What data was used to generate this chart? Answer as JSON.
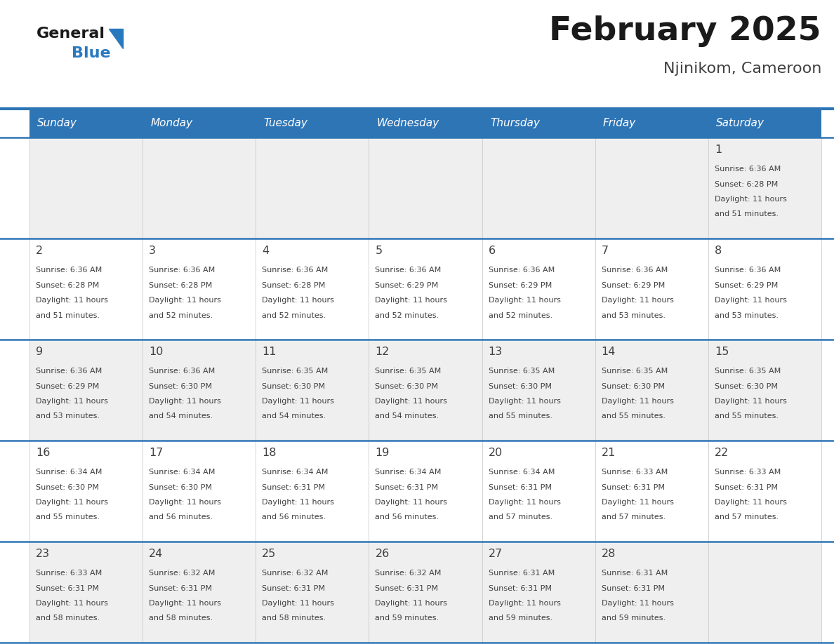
{
  "title": "February 2025",
  "subtitle": "Njinikom, Cameroon",
  "header_bg": "#2E75B6",
  "header_text_color": "#FFFFFF",
  "row_bg_even": "#EFEFEF",
  "row_bg_odd": "#FFFFFF",
  "day_headers": [
    "Sunday",
    "Monday",
    "Tuesday",
    "Wednesday",
    "Thursday",
    "Friday",
    "Saturday"
  ],
  "days": [
    {
      "day": 1,
      "col": 6,
      "row": 0,
      "sunrise": "6:36 AM",
      "sunset": "6:28 PM",
      "daylight": "11 hours and 51 minutes."
    },
    {
      "day": 2,
      "col": 0,
      "row": 1,
      "sunrise": "6:36 AM",
      "sunset": "6:28 PM",
      "daylight": "11 hours and 51 minutes."
    },
    {
      "day": 3,
      "col": 1,
      "row": 1,
      "sunrise": "6:36 AM",
      "sunset": "6:28 PM",
      "daylight": "11 hours and 52 minutes."
    },
    {
      "day": 4,
      "col": 2,
      "row": 1,
      "sunrise": "6:36 AM",
      "sunset": "6:28 PM",
      "daylight": "11 hours and 52 minutes."
    },
    {
      "day": 5,
      "col": 3,
      "row": 1,
      "sunrise": "6:36 AM",
      "sunset": "6:29 PM",
      "daylight": "11 hours and 52 minutes."
    },
    {
      "day": 6,
      "col": 4,
      "row": 1,
      "sunrise": "6:36 AM",
      "sunset": "6:29 PM",
      "daylight": "11 hours and 52 minutes."
    },
    {
      "day": 7,
      "col": 5,
      "row": 1,
      "sunrise": "6:36 AM",
      "sunset": "6:29 PM",
      "daylight": "11 hours and 53 minutes."
    },
    {
      "day": 8,
      "col": 6,
      "row": 1,
      "sunrise": "6:36 AM",
      "sunset": "6:29 PM",
      "daylight": "11 hours and 53 minutes."
    },
    {
      "day": 9,
      "col": 0,
      "row": 2,
      "sunrise": "6:36 AM",
      "sunset": "6:29 PM",
      "daylight": "11 hours and 53 minutes."
    },
    {
      "day": 10,
      "col": 1,
      "row": 2,
      "sunrise": "6:36 AM",
      "sunset": "6:30 PM",
      "daylight": "11 hours and 54 minutes."
    },
    {
      "day": 11,
      "col": 2,
      "row": 2,
      "sunrise": "6:35 AM",
      "sunset": "6:30 PM",
      "daylight": "11 hours and 54 minutes."
    },
    {
      "day": 12,
      "col": 3,
      "row": 2,
      "sunrise": "6:35 AM",
      "sunset": "6:30 PM",
      "daylight": "11 hours and 54 minutes."
    },
    {
      "day": 13,
      "col": 4,
      "row": 2,
      "sunrise": "6:35 AM",
      "sunset": "6:30 PM",
      "daylight": "11 hours and 55 minutes."
    },
    {
      "day": 14,
      "col": 5,
      "row": 2,
      "sunrise": "6:35 AM",
      "sunset": "6:30 PM",
      "daylight": "11 hours and 55 minutes."
    },
    {
      "day": 15,
      "col": 6,
      "row": 2,
      "sunrise": "6:35 AM",
      "sunset": "6:30 PM",
      "daylight": "11 hours and 55 minutes."
    },
    {
      "day": 16,
      "col": 0,
      "row": 3,
      "sunrise": "6:34 AM",
      "sunset": "6:30 PM",
      "daylight": "11 hours and 55 minutes."
    },
    {
      "day": 17,
      "col": 1,
      "row": 3,
      "sunrise": "6:34 AM",
      "sunset": "6:30 PM",
      "daylight": "11 hours and 56 minutes."
    },
    {
      "day": 18,
      "col": 2,
      "row": 3,
      "sunrise": "6:34 AM",
      "sunset": "6:31 PM",
      "daylight": "11 hours and 56 minutes."
    },
    {
      "day": 19,
      "col": 3,
      "row": 3,
      "sunrise": "6:34 AM",
      "sunset": "6:31 PM",
      "daylight": "11 hours and 56 minutes."
    },
    {
      "day": 20,
      "col": 4,
      "row": 3,
      "sunrise": "6:34 AM",
      "sunset": "6:31 PM",
      "daylight": "11 hours and 57 minutes."
    },
    {
      "day": 21,
      "col": 5,
      "row": 3,
      "sunrise": "6:33 AM",
      "sunset": "6:31 PM",
      "daylight": "11 hours and 57 minutes."
    },
    {
      "day": 22,
      "col": 6,
      "row": 3,
      "sunrise": "6:33 AM",
      "sunset": "6:31 PM",
      "daylight": "11 hours and 57 minutes."
    },
    {
      "day": 23,
      "col": 0,
      "row": 4,
      "sunrise": "6:33 AM",
      "sunset": "6:31 PM",
      "daylight": "11 hours and 58 minutes."
    },
    {
      "day": 24,
      "col": 1,
      "row": 4,
      "sunrise": "6:32 AM",
      "sunset": "6:31 PM",
      "daylight": "11 hours and 58 minutes."
    },
    {
      "day": 25,
      "col": 2,
      "row": 4,
      "sunrise": "6:32 AM",
      "sunset": "6:31 PM",
      "daylight": "11 hours and 58 minutes."
    },
    {
      "day": 26,
      "col": 3,
      "row": 4,
      "sunrise": "6:32 AM",
      "sunset": "6:31 PM",
      "daylight": "11 hours and 59 minutes."
    },
    {
      "day": 27,
      "col": 4,
      "row": 4,
      "sunrise": "6:31 AM",
      "sunset": "6:31 PM",
      "daylight": "11 hours and 59 minutes."
    },
    {
      "day": 28,
      "col": 5,
      "row": 4,
      "sunrise": "6:31 AM",
      "sunset": "6:31 PM",
      "daylight": "11 hours and 59 minutes."
    }
  ],
  "n_rows": 5,
  "n_cols": 7,
  "bg_color": "#FFFFFF",
  "row_divider_color": "#2E75B6",
  "cell_divider_color": "#CCCCCC",
  "day_num_color": "#404040",
  "info_text_color": "#404040",
  "logo_general_color": "#1A1A1A",
  "logo_blue_color": "#2979BF",
  "title_color": "#1A1A1A",
  "subtitle_color": "#404040"
}
